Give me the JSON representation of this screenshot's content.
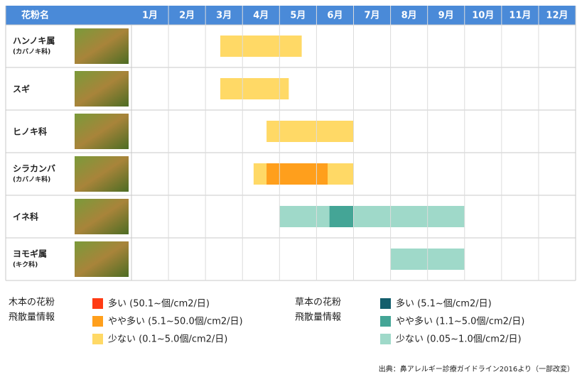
{
  "chart_data": {
    "type": "timeline",
    "header": "花粉名",
    "categories": [
      "1月",
      "2月",
      "3月",
      "4月",
      "5月",
      "6月",
      "7月",
      "8月",
      "9月",
      "10月",
      "11月",
      "12月"
    ],
    "xlim": [
      0,
      12
    ],
    "rows": [
      {
        "name": "ハンノキ属",
        "sub": "(カバノキ科)",
        "segments": [
          {
            "start": 2.4,
            "end": 4.6,
            "color": "#ffd966"
          }
        ]
      },
      {
        "name": "スギ",
        "segments": [
          {
            "start": 2.4,
            "end": 4.25,
            "color": "#ffd966"
          }
        ]
      },
      {
        "name": "ヒノキ科",
        "segments": [
          {
            "start": 3.65,
            "end": 6.0,
            "color": "#ffd966"
          }
        ]
      },
      {
        "name": "シラカンバ",
        "sub": "(カバノキ科)",
        "segments": [
          {
            "start": 3.3,
            "end": 6.0,
            "color": "#ffd966"
          },
          {
            "start": 3.65,
            "end": 5.3,
            "color": "#ff9f1c"
          }
        ]
      },
      {
        "name": "イネ科",
        "segments": [
          {
            "start": 4.0,
            "end": 9.0,
            "color": "#9fd9c9"
          },
          {
            "start": 5.35,
            "end": 6.0,
            "color": "#44a596"
          }
        ]
      },
      {
        "name": "ヨモギ属",
        "sub": "(キク科)",
        "segments": [
          {
            "start": 7.0,
            "end": 9.0,
            "color": "#9fd9c9"
          }
        ]
      }
    ],
    "legends": [
      {
        "title": [
          "木本の花粉",
          "飛散量情報"
        ],
        "items": [
          {
            "label": "多い (50.1~個/cm2/日)",
            "color": "#ff3b14"
          },
          {
            "label": "やや多い (5.1~50.0個/cm2/日)",
            "color": "#ff9f1c"
          },
          {
            "label": "少ない (0.1~5.0個/cm2/日)",
            "color": "#ffd966"
          }
        ]
      },
      {
        "title": [
          "草本の花粉",
          "飛散量情報"
        ],
        "items": [
          {
            "label": "多い (5.1~個/cm2/日)",
            "color": "#135e6c"
          },
          {
            "label": "やや多い (1.1~5.0個/cm2/日)",
            "color": "#44a596"
          },
          {
            "label": "少ない (0.05~1.0個/cm2/日)",
            "color": "#9fd9c9"
          }
        ]
      }
    ],
    "source": "出典：鼻アレルギー診療ガイドライン2016より（一部改変）"
  }
}
